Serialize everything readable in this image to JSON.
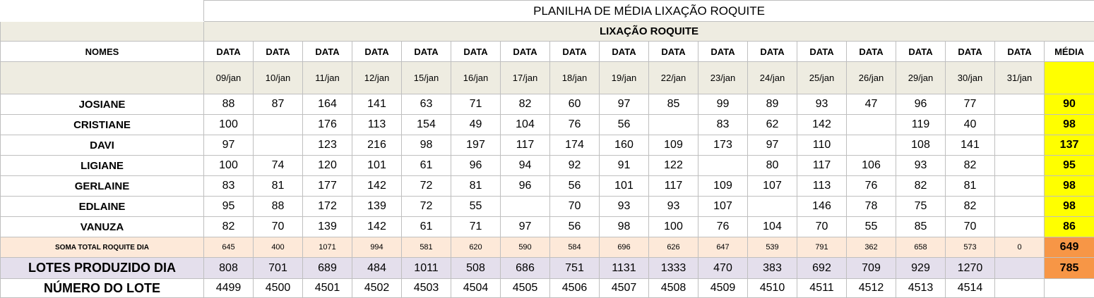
{
  "sheet": {
    "title": "PLANILHA DE MÉDIA LIXAÇÃO ROQUITE",
    "section_title": "LIXAÇÃO ROQUITE",
    "names_header": "NOMES",
    "data_header": "DATA",
    "media_header": "MÉDIA",
    "dates": [
      "09/jan",
      "10/jan",
      "11/jan",
      "12/jan",
      "15/jan",
      "16/jan",
      "17/jan",
      "18/jan",
      "19/jan",
      "22/jan",
      "23/jan",
      "24/jan",
      "25/jan",
      "26/jan",
      "29/jan",
      "30/jan",
      "31/jan"
    ],
    "employees": [
      {
        "name": "JOSIANE",
        "values": [
          "88",
          "87",
          "164",
          "141",
          "63",
          "71",
          "82",
          "60",
          "97",
          "85",
          "99",
          "89",
          "93",
          "47",
          "96",
          "77",
          ""
        ],
        "media": "90"
      },
      {
        "name": "CRISTIANE",
        "values": [
          "100",
          "",
          "176",
          "113",
          "154",
          "49",
          "104",
          "76",
          "56",
          "",
          "83",
          "62",
          "142",
          "",
          "119",
          "40",
          ""
        ],
        "media": "98"
      },
      {
        "name": "DAVI",
        "values": [
          "97",
          "",
          "123",
          "216",
          "98",
          "197",
          "117",
          "174",
          "160",
          "109",
          "173",
          "97",
          "110",
          "",
          "108",
          "141",
          ""
        ],
        "media": "137"
      },
      {
        "name": "LIGIANE",
        "values": [
          "100",
          "74",
          "120",
          "101",
          "61",
          "96",
          "94",
          "92",
          "91",
          "122",
          "",
          "80",
          "117",
          "106",
          "93",
          "82",
          ""
        ],
        "media": "95"
      },
      {
        "name": "GERLAINE",
        "values": [
          "83",
          "81",
          "177",
          "142",
          "72",
          "81",
          "96",
          "56",
          "101",
          "117",
          "109",
          "107",
          "113",
          "76",
          "82",
          "81",
          ""
        ],
        "media": "98"
      },
      {
        "name": "EDLAINE",
        "values": [
          "95",
          "88",
          "172",
          "139",
          "72",
          "55",
          "",
          "70",
          "93",
          "93",
          "107",
          "",
          "146",
          "78",
          "75",
          "82",
          ""
        ],
        "media": "98"
      },
      {
        "name": "VANUZA",
        "values": [
          "82",
          "70",
          "139",
          "142",
          "61",
          "71",
          "97",
          "56",
          "98",
          "100",
          "76",
          "104",
          "70",
          "55",
          "85",
          "70",
          ""
        ],
        "media": "86"
      }
    ],
    "soma": {
      "label": "SOMA TOTAL  ROQUITE DIA",
      "values": [
        "645",
        "400",
        "1071",
        "994",
        "581",
        "620",
        "590",
        "584",
        "696",
        "626",
        "647",
        "539",
        "791",
        "362",
        "658",
        "573",
        "0"
      ],
      "media": "649"
    },
    "lotes": {
      "label": "LOTES PRODUZIDO DIA",
      "values": [
        "808",
        "701",
        "689",
        "484",
        "1011",
        "508",
        "686",
        "751",
        "1131",
        "1333",
        "470",
        "383",
        "692",
        "709",
        "929",
        "1270",
        ""
      ],
      "media": "785"
    },
    "numero_lote": {
      "label": "NÚMERO DO LOTE",
      "values": [
        "4499",
        "4500",
        "4501",
        "4502",
        "4503",
        "4504",
        "4505",
        "4506",
        "4507",
        "4508",
        "4509",
        "4510",
        "4511",
        "4512",
        "4513",
        "4514",
        ""
      ],
      "media": ""
    }
  }
}
